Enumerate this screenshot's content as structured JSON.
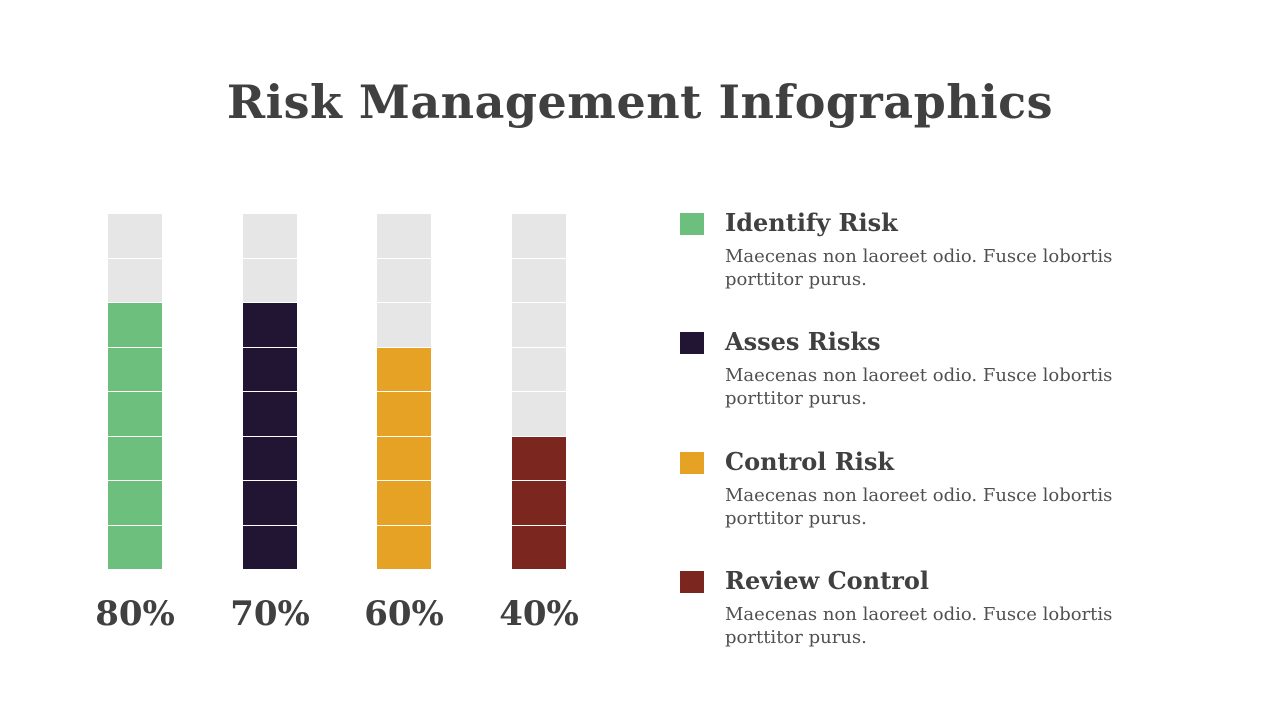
{
  "title": "Risk Management Infographics",
  "chart_data": {
    "type": "bar",
    "segments_per_bar": 8,
    "empty_color": "#e6e6e6",
    "categories": [
      "Identify Risk",
      "Asses Risks",
      "Control Risk",
      "Review Control"
    ],
    "values": [
      80,
      70,
      60,
      40
    ],
    "labels": [
      "80%",
      "70%",
      "60%",
      "40%"
    ],
    "colors": [
      "#6dbf7e",
      "#221433",
      "#e6a225",
      "#7b261f"
    ],
    "ylim": [
      0,
      100
    ]
  },
  "legend": [
    {
      "title": "Identify Risk",
      "description": "Maecenas non laoreet odio. Fusce lobortis porttitor purus.",
      "color": "#6dbf7e"
    },
    {
      "title": "Asses Risks",
      "description": "Maecenas non laoreet odio. Fusce lobortis porttitor purus.",
      "color": "#221433"
    },
    {
      "title": "Control Risk",
      "description": "Maecenas non laoreet odio. Fusce lobortis porttitor purus.",
      "color": "#e6a225"
    },
    {
      "title": "Review Control",
      "description": "Maecenas non laoreet odio. Fusce lobortis porttitor purus.",
      "color": "#7b261f"
    }
  ]
}
